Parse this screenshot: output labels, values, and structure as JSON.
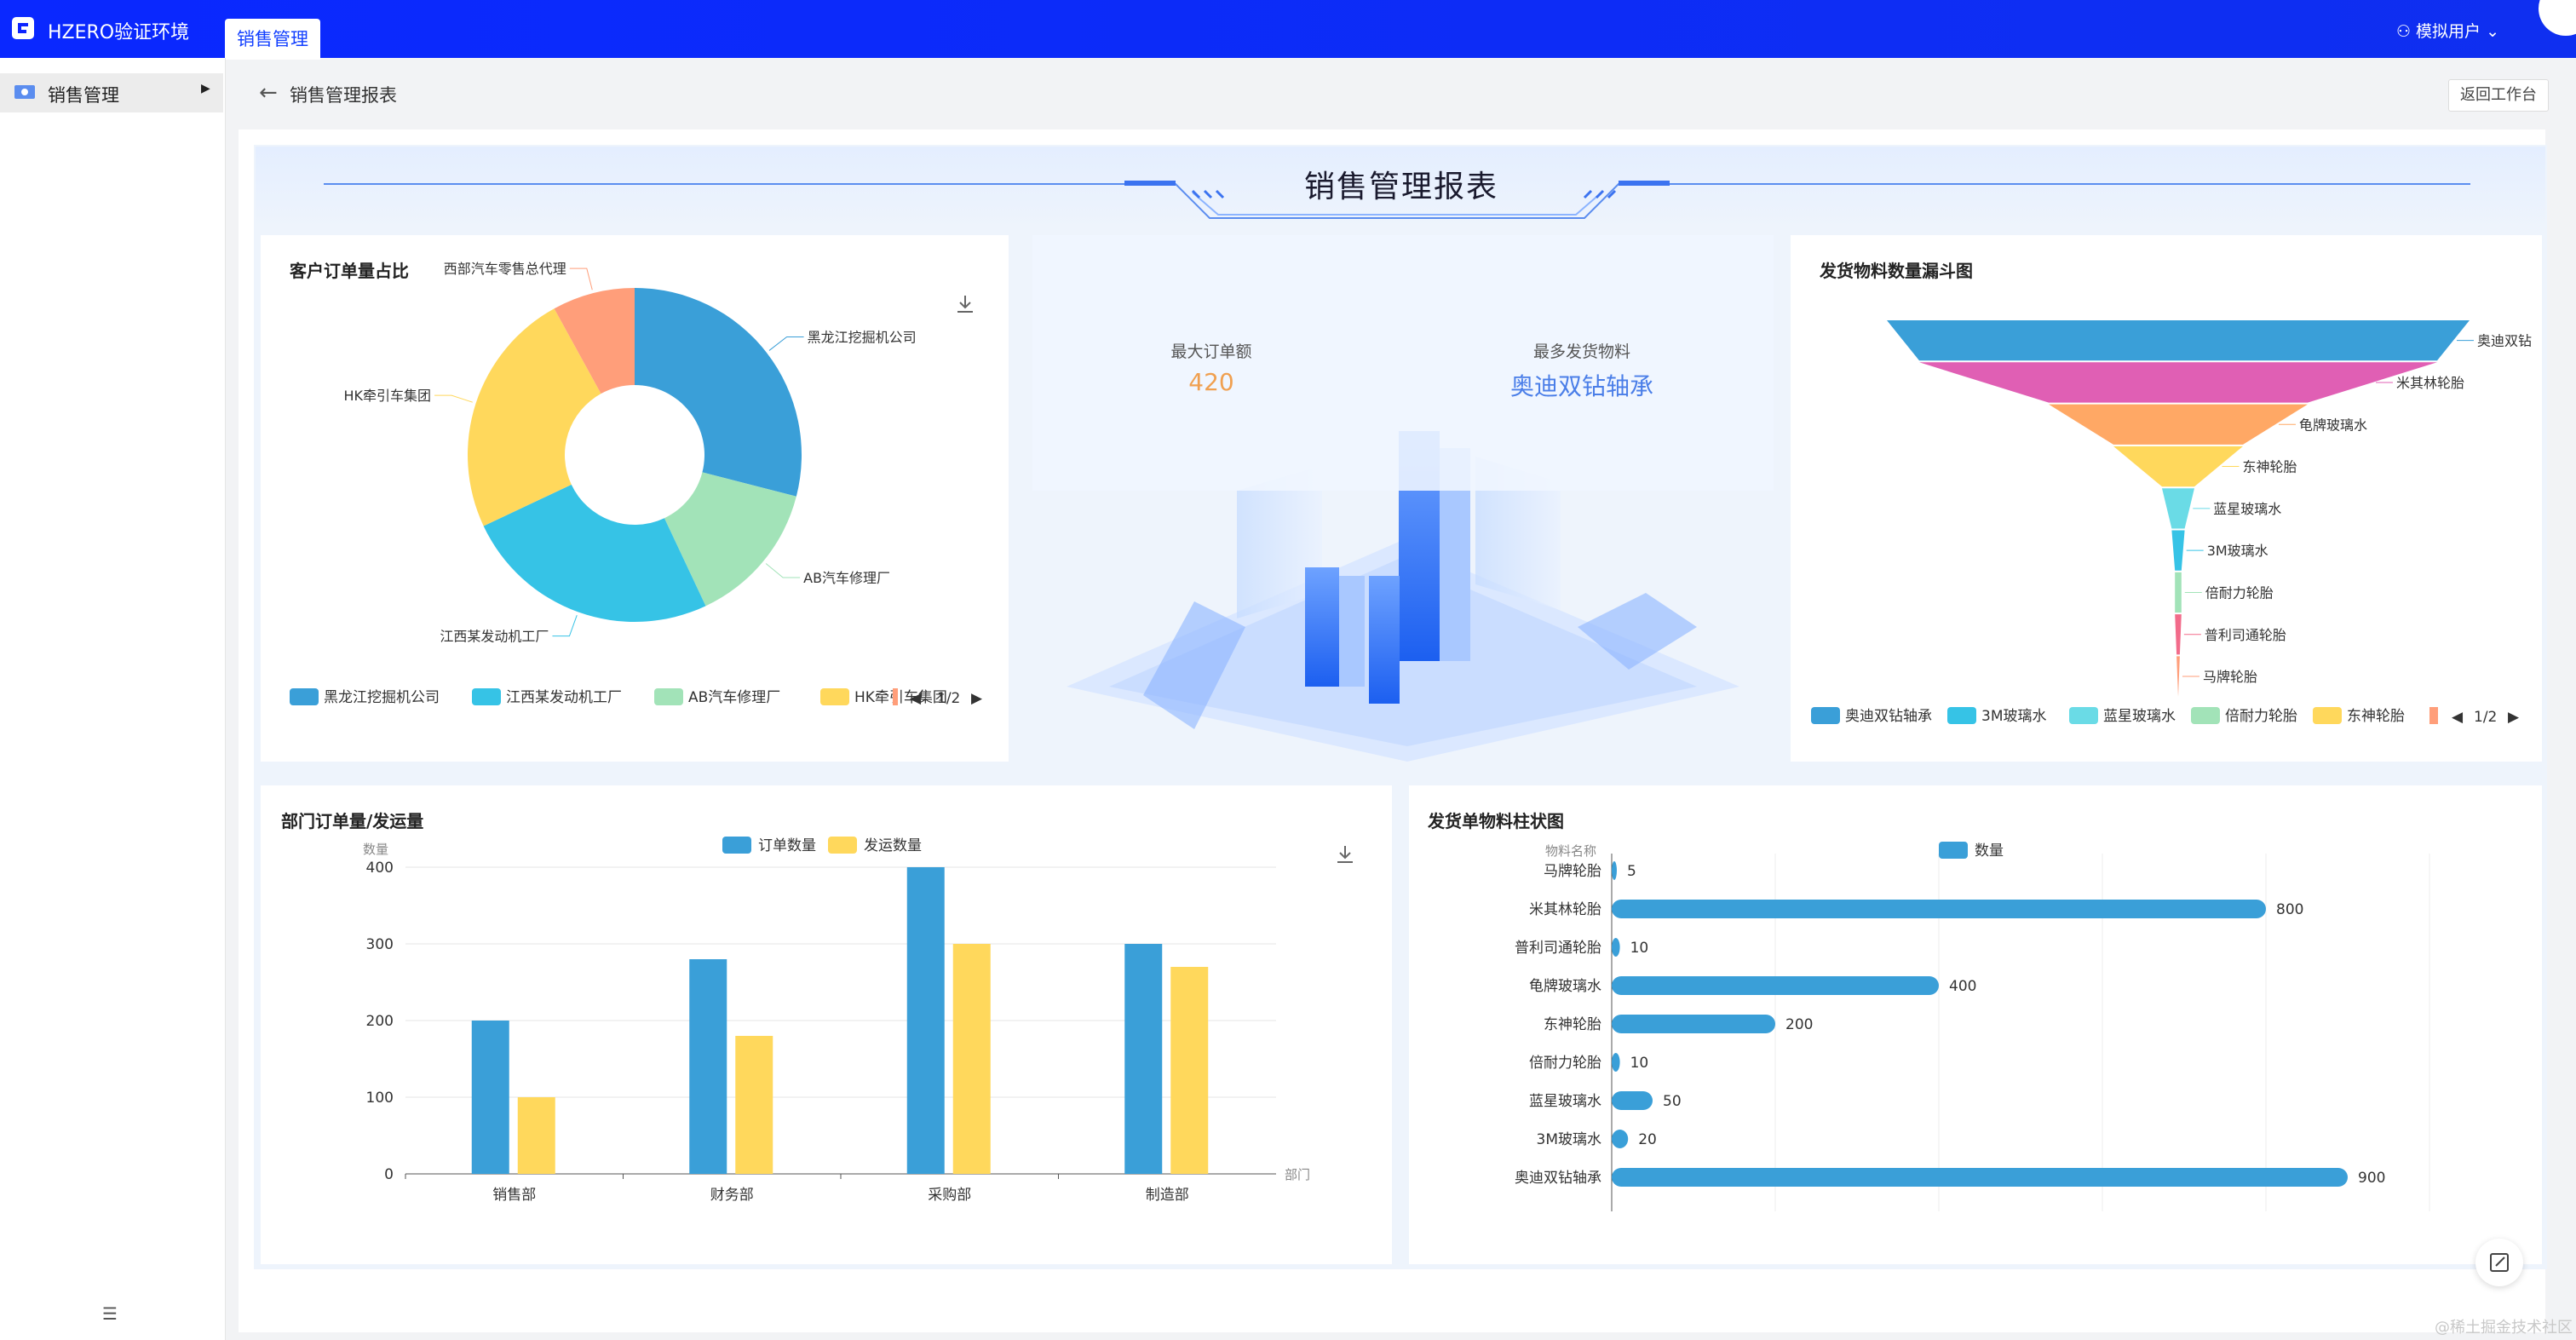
{
  "app": {
    "title": "HZERO验证环境",
    "top_tab": "销售管理",
    "user": "模拟用户"
  },
  "sidebar": {
    "items": [
      {
        "label": "销售管理"
      }
    ]
  },
  "breadcrumb": {
    "title": "销售管理报表",
    "return_label": "返回工作台"
  },
  "report": {
    "title": "销售管理报表"
  },
  "stats": {
    "max_order_label": "最大订单额",
    "max_order_value": "420",
    "top_material_label": "最多发货物料",
    "top_material_value": "奥迪双钻轴承"
  },
  "colors": {
    "blue": "#3a9fd8",
    "cyan": "#36c3e6",
    "green": "#a2e3b8",
    "yellow": "#ffd85c",
    "salmon": "#ff9e7a",
    "magenta": "#e05fb4",
    "orange": "#ffa865",
    "teal": "#6adbe6",
    "pink": "#f26b8a"
  },
  "watermark": "@稀土掘金技术社区",
  "chart_data": [
    {
      "type": "pie",
      "title": "客户订单量占比",
      "slices": [
        {
          "name": "黑龙江挖掘机公司",
          "value": 29
        },
        {
          "name": "AB汽车修理厂",
          "value": 14
        },
        {
          "name": "江西某发动机工厂",
          "value": 25
        },
        {
          "name": "HK牵引车集团",
          "value": 24
        },
        {
          "name": "西部汽车零售总代理",
          "value": 8
        }
      ],
      "legend": [
        "黑龙江挖掘机公司",
        "江西某发动机工厂",
        "AB汽车修理厂",
        "HK牵引车集团"
      ],
      "legend_page": "1/2"
    },
    {
      "type": "funnel",
      "title": "发货物料数量漏斗图",
      "categories": [
        "奥迪双钻",
        "米其林轮胎",
        "龟牌玻璃水",
        "东神轮胎",
        "蓝星玻璃水",
        "3M玻璃水",
        "倍耐力轮胎",
        "普利司通轮胎",
        "马牌轮胎"
      ],
      "values": [
        900,
        800,
        400,
        200,
        50,
        20,
        10,
        10,
        5
      ],
      "legend": [
        "奥迪双钻轴承",
        "3M玻璃水",
        "蓝星玻璃水",
        "倍耐力轮胎",
        "东神轮胎"
      ],
      "legend_page": "1/2"
    },
    {
      "type": "bar",
      "title": "部门订单量/发运量",
      "categories": [
        "销售部",
        "财务部",
        "采购部",
        "制造部"
      ],
      "series": [
        {
          "name": "订单数量",
          "values": [
            200,
            280,
            400,
            300
          ]
        },
        {
          "name": "发运数量",
          "values": [
            100,
            180,
            300,
            270
          ]
        }
      ],
      "ylabel": "数量",
      "xlabel": "部门",
      "ylim": [
        0,
        400
      ],
      "yticks": [
        0,
        100,
        200,
        300,
        400
      ]
    },
    {
      "type": "bar",
      "orientation": "horizontal",
      "title": "发货单物料柱状图",
      "categories": [
        "马牌轮胎",
        "米其林轮胎",
        "普利司通轮胎",
        "龟牌玻璃水",
        "东神轮胎",
        "倍耐力轮胎",
        "蓝星玻璃水",
        "3M玻璃水",
        "奥迪双钻轴承"
      ],
      "series": [
        {
          "name": "数量",
          "values": [
            5,
            800,
            10,
            400,
            200,
            10,
            50,
            20,
            900
          ]
        }
      ],
      "ylabel": "物料名称",
      "xlim": [
        0,
        1000
      ]
    }
  ]
}
